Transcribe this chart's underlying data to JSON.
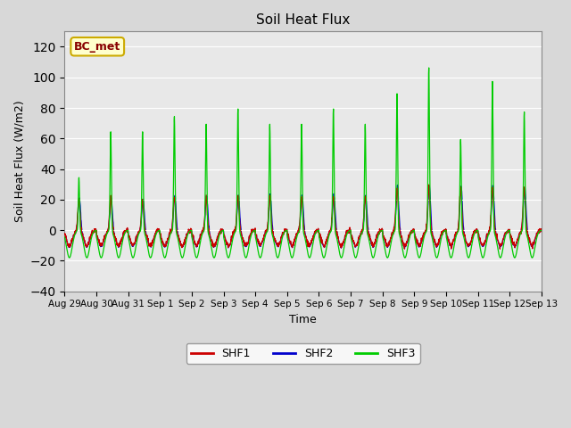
{
  "title": "Soil Heat Flux",
  "xlabel": "Time",
  "ylabel": "Soil Heat Flux (W/m2)",
  "ylim": [
    -40,
    130
  ],
  "yticks": [
    -40,
    -20,
    0,
    20,
    40,
    60,
    80,
    100,
    120
  ],
  "fig_bg_color": "#d8d8d8",
  "plot_bg_color": "#e8e8e8",
  "shf1_color": "#cc0000",
  "shf2_color": "#0000cc",
  "shf3_color": "#00cc00",
  "annotation_text": "BC_met",
  "annotation_bg": "#ffffcc",
  "annotation_border": "#ccaa00",
  "legend_labels": [
    "SHF1",
    "SHF2",
    "SHF3"
  ],
  "legend_bg": "#ffffff",
  "x_tick_labels": [
    "Aug 29",
    "Aug 30",
    "Aug 31",
    "Sep 1",
    "Sep 2",
    "Sep 3",
    "Sep 4",
    "Sep 5",
    "Sep 6",
    "Sep 7",
    "Sep 8",
    "Sep 9",
    "Sep 10",
    "Sep 11",
    "Sep 12",
    "Sep 13"
  ],
  "n_days": 15,
  "pts_per_day": 144,
  "day_amps_shf1": [
    20,
    20,
    20,
    22,
    22,
    22,
    22,
    22,
    22,
    22,
    28,
    28,
    28,
    28,
    28
  ],
  "day_amps_shf3": [
    35,
    65,
    65,
    75,
    70,
    80,
    70,
    70,
    80,
    70,
    90,
    107,
    60,
    98,
    78
  ]
}
